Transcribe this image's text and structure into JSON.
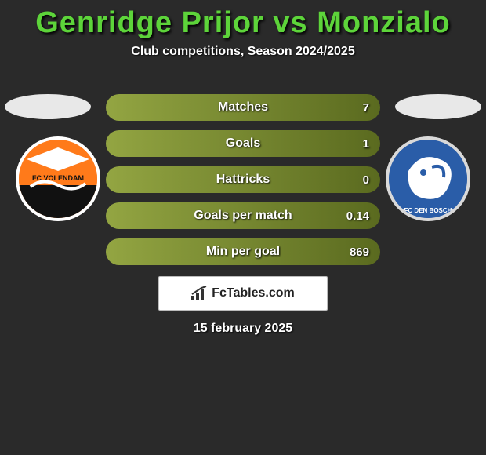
{
  "title": "Genridge Prijor vs Monzialo",
  "title_color": "#5dd43a",
  "subtitle": "Club competitions, Season 2024/2025",
  "subtitle_color": "#ffffff",
  "background_color": "#2a2a2a",
  "avatar_left_color": "#e8e8e8",
  "avatar_right_color": "#e8e8e8",
  "club_left": {
    "name": "FC VOLENDAM",
    "primary_color": "#ff7a1a",
    "secondary_color": "#111111"
  },
  "club_right": {
    "name": "FC DEN BOSCH",
    "primary_color": "#2a5da8",
    "secondary_color": "#ffffff"
  },
  "stats": {
    "row_bg_left": "#93a542",
    "row_bg_right": "#5a6a1f",
    "label_color": "#ffffff",
    "value_color": "#ffffff",
    "rows": [
      {
        "label": "Matches",
        "value": "7"
      },
      {
        "label": "Goals",
        "value": "1"
      },
      {
        "label": "Hattricks",
        "value": "0"
      },
      {
        "label": "Goals per match",
        "value": "0.14"
      },
      {
        "label": "Min per goal",
        "value": "869"
      }
    ]
  },
  "branding_text": "FcTables.com",
  "footer_date": "15 february 2025"
}
